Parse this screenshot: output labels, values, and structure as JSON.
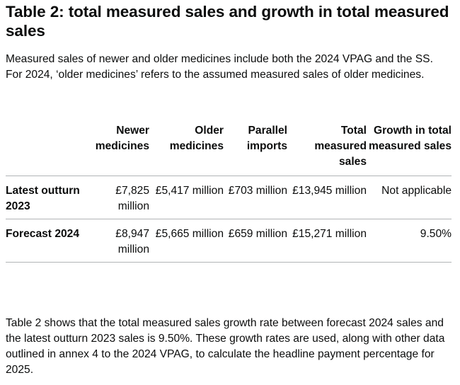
{
  "heading": "Table 2: total measured sales and growth in total measured sales",
  "intro": "Measured sales of newer and older medicines include both the 2024 VPAG and the SS. For 2024, ‘older medicines’ refers to the assumed measured sales of older medicines.",
  "table": {
    "columns": [
      "",
      "Newer medicines",
      "Older medicines",
      "Parallel imports",
      "Total measured sales",
      "Growth in total measured sales"
    ],
    "rows": [
      {
        "label": "Latest outturn 2023",
        "cells": [
          "£7,825 million",
          "£5,417 million",
          "£703 million",
          "£13,945 million",
          "Not applicable"
        ]
      },
      {
        "label": "Forecast 2024",
        "cells": [
          "£8,947 million",
          "£5,665 million",
          "£659 million",
          "£15,271 million",
          "9.50%"
        ]
      }
    ]
  },
  "footnote": "Table 2 shows that the total measured sales growth rate between forecast 2024 sales and the latest outturn 2023 sales is 9.50%. These growth rates are used, along with other data outlined in annex 4 to the 2024 VPAG, to calculate the headline payment percentage for 2025."
}
